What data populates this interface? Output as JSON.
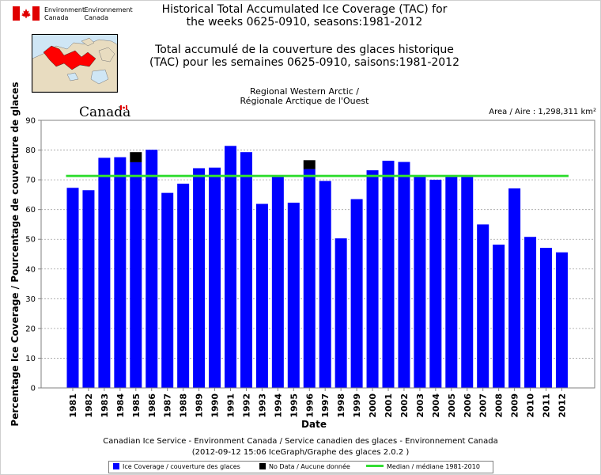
{
  "header": {
    "ec_en": "Environment Canada",
    "ec_fr": "Environnement Canada",
    "title_en_1": "Historical Total Accumulated Ice Coverage (TAC) for",
    "title_en_2": "the weeks 0625-0910, seasons:1981-2012",
    "title_fr_1": "Total accumulé de la couverture des glaces historique",
    "title_fr_2": "(TAC) pour les semaines 0625-0910, saisons:1981-2012",
    "region_1": "Regional Western Arctic /",
    "region_2": "Régionale Arctique de l'Ouest",
    "area": "Area / Aire : 1,298,311 km²",
    "wordmark": "Canada"
  },
  "colors": {
    "ice": "#0000ff",
    "nodata": "#000000",
    "median": "#33dd33",
    "flag_red": "#e00000"
  },
  "chart_data": {
    "type": "bar",
    "xlabel": "Date",
    "ylabel": "Percentage Ice Coverage / Pourcentage de couverture de glaces",
    "ylim": [
      0,
      90
    ],
    "yticks": [
      0,
      10,
      20,
      30,
      40,
      50,
      60,
      70,
      80,
      90
    ],
    "grid": true,
    "categories": [
      "1981",
      "1982",
      "1983",
      "1984",
      "1985",
      "1986",
      "1987",
      "1988",
      "1989",
      "1990",
      "1991",
      "1992",
      "1993",
      "1994",
      "1995",
      "1996",
      "1997",
      "1998",
      "1999",
      "2000",
      "2001",
      "2002",
      "2003",
      "2004",
      "2005",
      "2006",
      "2007",
      "2008",
      "2009",
      "2010",
      "2011",
      "2012"
    ],
    "series": [
      {
        "name": "Ice Coverage / couverture des glaces",
        "values": [
          67.3,
          66.5,
          77.4,
          77.6,
          75.9,
          80.1,
          65.6,
          68.7,
          73.9,
          74.1,
          81.4,
          79.3,
          61.9,
          71.6,
          62.3,
          73.6,
          69.6,
          50.3,
          63.5,
          73.2,
          76.4,
          76.0,
          71.0,
          70.0,
          71.0,
          71.0,
          55.0,
          48.2,
          67.1,
          50.8,
          47.1,
          45.6
        ]
      },
      {
        "name": "No Data / Aucune donnée",
        "values": [
          0,
          0,
          0,
          0,
          3.4,
          0,
          0,
          0,
          0,
          0,
          0,
          0,
          0,
          0,
          0,
          3.0,
          0,
          0,
          0,
          0,
          0,
          0,
          0,
          0,
          0,
          0,
          0,
          0,
          0,
          0,
          0,
          0
        ]
      }
    ],
    "median": {
      "name": "Median / médiane 1981-2010",
      "value": 71.3
    },
    "legend_position": "bottom"
  },
  "footer": {
    "line1": "Canadian Ice Service - Environment Canada / Service canadien des glaces - Environnement Canada",
    "line2": "(2012-09-12 15:06 IceGraph/Graphe des glaces 2.0.2 )"
  }
}
